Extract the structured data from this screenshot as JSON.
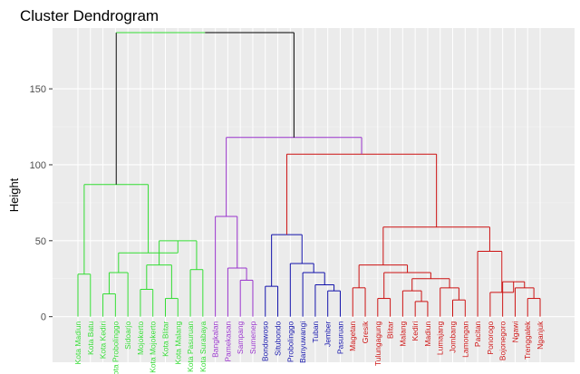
{
  "chart_data": {
    "type": "dendrogram",
    "title": "Cluster Dendrogram",
    "xlabel": "",
    "ylabel": "Height",
    "ylim": [
      -30,
      190
    ],
    "yticks": [
      0,
      50,
      100,
      150
    ],
    "grid": true,
    "background": "#ebebeb",
    "clusters": [
      {
        "id": "green",
        "color": "#33dd33"
      },
      {
        "id": "purple",
        "color": "#9933cc"
      },
      {
        "id": "blue",
        "color": "#1111aa"
      },
      {
        "id": "red",
        "color": "#cc1111"
      }
    ],
    "root_color": "#000000",
    "leaves": [
      {
        "label": "Kota Madiun",
        "cluster": "green"
      },
      {
        "label": "Kota Batu",
        "cluster": "green"
      },
      {
        "label": "Kota Kediri",
        "cluster": "green"
      },
      {
        "label": "Kota Probolinggo",
        "cluster": "green"
      },
      {
        "label": "Sidoarjo",
        "cluster": "green"
      },
      {
        "label": "Mojokerto",
        "cluster": "green"
      },
      {
        "label": "Kota Mojokerto",
        "cluster": "green"
      },
      {
        "label": "Kota Blitar",
        "cluster": "green"
      },
      {
        "label": "Kota Malang",
        "cluster": "green"
      },
      {
        "label": "Kota Pasuruan",
        "cluster": "green"
      },
      {
        "label": "Kota Surabaya",
        "cluster": "green"
      },
      {
        "label": "Bangkalan",
        "cluster": "purple"
      },
      {
        "label": "Pamekasan",
        "cluster": "purple"
      },
      {
        "label": "Sampang",
        "cluster": "purple"
      },
      {
        "label": "Sumenep",
        "cluster": "purple"
      },
      {
        "label": "Bondowoso",
        "cluster": "blue"
      },
      {
        "label": "Situbondo",
        "cluster": "blue"
      },
      {
        "label": "Probolinggo",
        "cluster": "blue"
      },
      {
        "label": "Banyuwangi",
        "cluster": "blue"
      },
      {
        "label": "Tuban",
        "cluster": "blue"
      },
      {
        "label": "Jember",
        "cluster": "blue"
      },
      {
        "label": "Pasuruan",
        "cluster": "blue"
      },
      {
        "label": "Magetan",
        "cluster": "red"
      },
      {
        "label": "Gresik",
        "cluster": "red"
      },
      {
        "label": "Tulungagung",
        "cluster": "red"
      },
      {
        "label": "Blitar",
        "cluster": "red"
      },
      {
        "label": "Malang",
        "cluster": "red"
      },
      {
        "label": "Kediri",
        "cluster": "red"
      },
      {
        "label": "Madiun",
        "cluster": "red"
      },
      {
        "label": "Lumajang",
        "cluster": "red"
      },
      {
        "label": "Jombang",
        "cluster": "red"
      },
      {
        "label": "Lamongan",
        "cluster": "red"
      },
      {
        "label": "Pacitan",
        "cluster": "red"
      },
      {
        "label": "Ponorogo",
        "cluster": "red"
      },
      {
        "label": "Bojonegoro",
        "cluster": "red"
      },
      {
        "label": "Ngawi",
        "cluster": "red"
      },
      {
        "label": "Trenggalek",
        "cluster": "red"
      },
      {
        "label": "Nganjuk",
        "cluster": "red"
      }
    ],
    "merges": [
      {
        "id": "G1",
        "left": "Kota Madiun",
        "right": "Kota Batu",
        "height": 28,
        "cluster": "green"
      },
      {
        "id": "G2",
        "left": "Kota Kediri",
        "right": "Kota Probolinggo",
        "height": 15,
        "cluster": "green"
      },
      {
        "id": "G3",
        "left": "G2",
        "right": "Sidoarjo",
        "height": 29,
        "cluster": "green"
      },
      {
        "id": "G4",
        "left": "Mojokerto",
        "right": "Kota Mojokerto",
        "height": 18,
        "cluster": "green"
      },
      {
        "id": "G5",
        "left": "Kota Blitar",
        "right": "Kota Malang",
        "height": 12,
        "cluster": "green"
      },
      {
        "id": "G6",
        "left": "Kota Pasuruan",
        "right": "Kota Surabaya",
        "height": 31,
        "cluster": "green"
      },
      {
        "id": "G7",
        "left": "G4",
        "right": "G5",
        "height": 34,
        "cluster": "green"
      },
      {
        "id": "G8",
        "left": "G7",
        "right": "G6",
        "height": 50,
        "cluster": "green"
      },
      {
        "id": "G9",
        "left": "G3",
        "right": "G8",
        "height": 42,
        "cluster": "green"
      },
      {
        "id": "G10",
        "left": "G1",
        "right": "G9",
        "height": 87,
        "cluster": "green"
      },
      {
        "id": "P1",
        "left": "Sampang",
        "right": "Sumenep",
        "height": 24,
        "cluster": "purple"
      },
      {
        "id": "P2",
        "left": "Pamekasan",
        "right": "P1",
        "height": 32,
        "cluster": "purple"
      },
      {
        "id": "P3",
        "left": "Bangkalan",
        "right": "P2",
        "height": 66,
        "cluster": "purple"
      },
      {
        "id": "B1",
        "left": "Bondowoso",
        "right": "Situbondo",
        "height": 20,
        "cluster": "blue"
      },
      {
        "id": "B2",
        "left": "Jember",
        "right": "Pasuruan",
        "height": 17,
        "cluster": "blue"
      },
      {
        "id": "B3",
        "left": "Tuban",
        "right": "B2",
        "height": 21,
        "cluster": "blue"
      },
      {
        "id": "B4",
        "left": "Banyuwangi",
        "right": "B3",
        "height": 29,
        "cluster": "blue"
      },
      {
        "id": "B5",
        "left": "Probolinggo",
        "right": "B4",
        "height": 35,
        "cluster": "blue"
      },
      {
        "id": "B6",
        "left": "B1",
        "right": "B5",
        "height": 54,
        "cluster": "blue"
      },
      {
        "id": "R1",
        "left": "Magetan",
        "right": "Gresik",
        "height": 19,
        "cluster": "red"
      },
      {
        "id": "R2",
        "left": "Tulungagung",
        "right": "Blitar",
        "height": 12,
        "cluster": "red"
      },
      {
        "id": "R3",
        "left": "Kediri",
        "right": "Madiun",
        "height": 10,
        "cluster": "red"
      },
      {
        "id": "R4",
        "left": "Malang",
        "right": "R3",
        "height": 17,
        "cluster": "red"
      },
      {
        "id": "R5",
        "left": "Jombang",
        "right": "Lamongan",
        "height": 11,
        "cluster": "red"
      },
      {
        "id": "R6",
        "left": "Lumajang",
        "right": "R5",
        "height": 19,
        "cluster": "red"
      },
      {
        "id": "R7",
        "left": "R4",
        "right": "R6",
        "height": 25,
        "cluster": "red"
      },
      {
        "id": "R8",
        "left": "R2",
        "right": "R7",
        "height": 29,
        "cluster": "red"
      },
      {
        "id": "R9",
        "left": "R1",
        "right": "R8",
        "height": 34,
        "cluster": "red"
      },
      {
        "id": "R10",
        "left": "Trenggalek",
        "right": "Nganjuk",
        "height": 12,
        "cluster": "red"
      },
      {
        "id": "R11",
        "left": "Ngawi",
        "right": "R10",
        "height": 19,
        "cluster": "red"
      },
      {
        "id": "R12",
        "left": "Bojonegoro",
        "right": "R11",
        "height": 23,
        "cluster": "red"
      },
      {
        "id": "R13",
        "left": "Ponorogo",
        "right": "R12",
        "height": 16,
        "cluster": "red"
      },
      {
        "id": "R14",
        "left": "Pacitan",
        "right": "R13",
        "height": 43,
        "cluster": "red"
      },
      {
        "id": "R15",
        "left": "R9",
        "right": "R14",
        "height": 59,
        "cluster": "red"
      },
      {
        "id": "R16",
        "left": "B6",
        "right": "R15",
        "height": 107,
        "cluster": "red"
      },
      {
        "id": "X1",
        "left": "P3",
        "right": "R16",
        "height": 118,
        "cluster": "purple"
      },
      {
        "id": "X2",
        "left": "G10",
        "right": "X1",
        "height": 187,
        "cluster": "root"
      }
    ]
  }
}
